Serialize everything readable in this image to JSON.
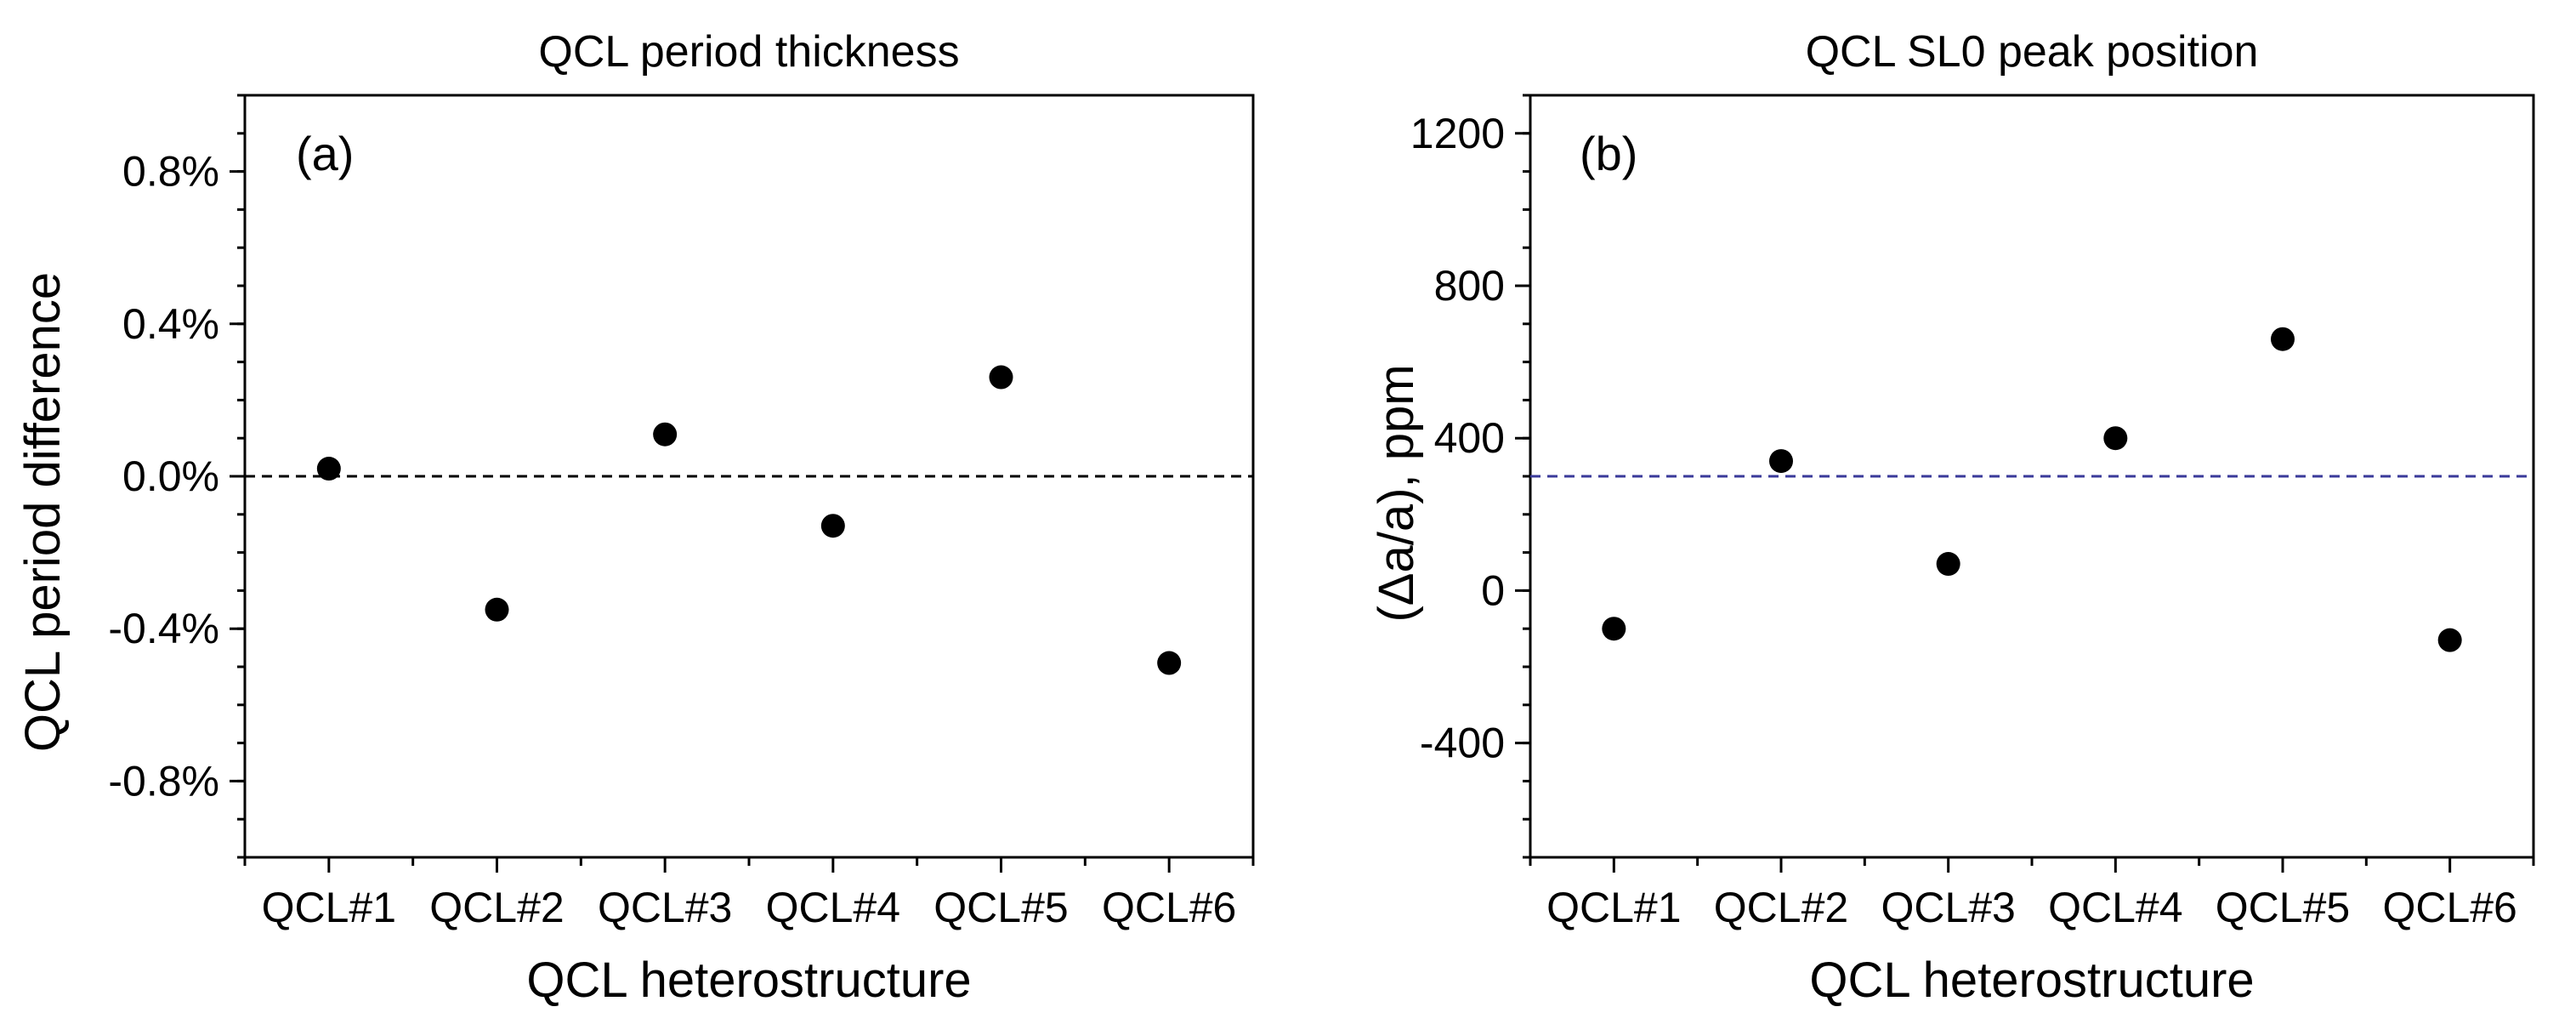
{
  "chart_data": [
    {
      "type": "scatter",
      "title": "QCL period thickness",
      "panel_label": "(a)",
      "xlabel": "QCL heterostructure",
      "ylabel": "QCL period difference",
      "categories": [
        "QCL#1",
        "QCL#2",
        "QCL#3",
        "QCL#4",
        "QCL#5",
        "QCL#6"
      ],
      "values": [
        0.02,
        -0.35,
        0.11,
        -0.13,
        0.26,
        -0.49
      ],
      "ylim": [
        -1.0,
        1.0
      ],
      "yticks": [
        -0.8,
        -0.4,
        0.0,
        0.4,
        0.8
      ],
      "ytick_labels": [
        "-0.8%",
        "-0.4%",
        "0.0%",
        "0.4%",
        "0.8%"
      ],
      "y_minor_step": 0.1,
      "reference_line": 0.0,
      "reference_color": "#000000",
      "marker_color": "#000000",
      "grid": false
    },
    {
      "type": "scatter",
      "title": "QCL SL0 peak position",
      "panel_label": "(b)",
      "xlabel": "QCL heterostructure",
      "ylabel": "(Δa/a), ppm",
      "categories": [
        "QCL#1",
        "QCL#2",
        "QCL#3",
        "QCL#4",
        "QCL#5",
        "QCL#6"
      ],
      "values": [
        -100,
        340,
        70,
        400,
        660,
        -130
      ],
      "ylim": [
        -700,
        1300
      ],
      "yticks": [
        -400,
        0,
        400,
        800,
        1200
      ],
      "ytick_labels": [
        "-400",
        "0",
        "400",
        "800",
        "1200"
      ],
      "y_minor_step": 100,
      "reference_line": 300,
      "reference_color": "#3a3a9a",
      "marker_color": "#000000",
      "grid": false
    }
  ]
}
